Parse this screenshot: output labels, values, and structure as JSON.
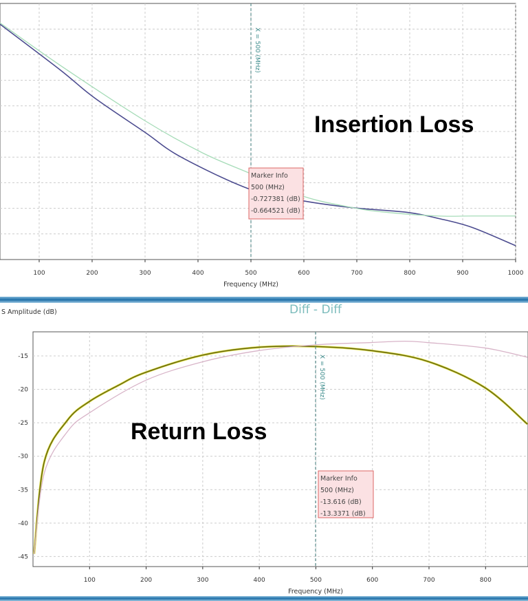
{
  "chart_data": [
    {
      "type": "line",
      "annotation": "Insertion Loss",
      "xlabel": "Frequency (MHz)",
      "ylabel": "",
      "xlim": [
        26,
        1000
      ],
      "ylim": [
        -1.0,
        0
      ],
      "x_ticks": [
        100,
        200,
        300,
        400,
        500,
        600,
        700,
        800,
        900,
        1000
      ],
      "y_gridlines": [
        -0.9,
        -0.8,
        -0.7,
        -0.6,
        -0.5,
        -0.4,
        -0.3,
        -0.2,
        -0.1
      ],
      "grid": true,
      "marker": {
        "x": 500,
        "label": "X = 500 (MHz)",
        "info": [
          "Marker Info",
          "500 (MHz)",
          "-0.727381 (dB)",
          "-0.664521 (dB)"
        ]
      },
      "series": [
        {
          "color": "#4b4b8f",
          "x": [
            26,
            140,
            204,
            299,
            369,
            500,
            599,
            694,
            796,
            853,
            917,
            1000
          ],
          "y": [
            -0.081,
            -0.26,
            -0.368,
            -0.502,
            -0.601,
            -0.727,
            -0.771,
            -0.798,
            -0.816,
            -0.839,
            -0.874,
            -0.946
          ]
        },
        {
          "color": "#a6dcb8",
          "x": [
            26,
            140,
            299,
            408,
            500,
            599,
            694,
            758,
            853,
            917,
            1000
          ],
          "y": [
            -0.076,
            -0.242,
            -0.457,
            -0.583,
            -0.665,
            -0.753,
            -0.798,
            -0.816,
            -0.83,
            -0.83,
            -0.83
          ]
        }
      ]
    },
    {
      "type": "line",
      "title": "Diff - Diff",
      "annotation": "Return Loss",
      "xlabel": "Frequency (MHz)",
      "ylabel": "S Amplitude (dB)",
      "xlim": [
        0,
        875
      ],
      "ylim": [
        -46.5,
        -11.4
      ],
      "x_ticks": [
        100,
        200,
        300,
        400,
        500,
        600,
        700,
        800
      ],
      "y_ticks": [
        -15,
        -20,
        -25,
        -30,
        -35,
        -40,
        -45
      ],
      "grid": true,
      "marker": {
        "x": 500,
        "label": "X = 500 (MHz)",
        "info": [
          "Marker Info",
          "500 (MHz)",
          "-13.616 (dB)",
          "-13.3371 (dB)"
        ]
      },
      "series": [
        {
          "color": "#6a6a12",
          "x": [
            2,
            20,
            61,
            100,
            151,
            198,
            299,
            400,
            500,
            597,
            697,
            798,
            874
          ],
          "y": [
            -44.6,
            -30.8,
            -24.6,
            -21.8,
            -19.4,
            -17.5,
            -14.9,
            -13.7,
            -13.6,
            -14.2,
            -15.8,
            -19.7,
            -25.2
          ]
        },
        {
          "color": "#d8b4c8",
          "x": [
            2,
            20,
            61,
            100,
            198,
            299,
            400,
            500,
            597,
            657,
            697,
            798,
            874
          ],
          "y": [
            -44.6,
            -32.5,
            -26.3,
            -23.5,
            -18.7,
            -15.9,
            -14.2,
            -13.34,
            -13.0,
            -12.8,
            -13.0,
            -13.8,
            -15.2
          ]
        }
      ]
    }
  ]
}
